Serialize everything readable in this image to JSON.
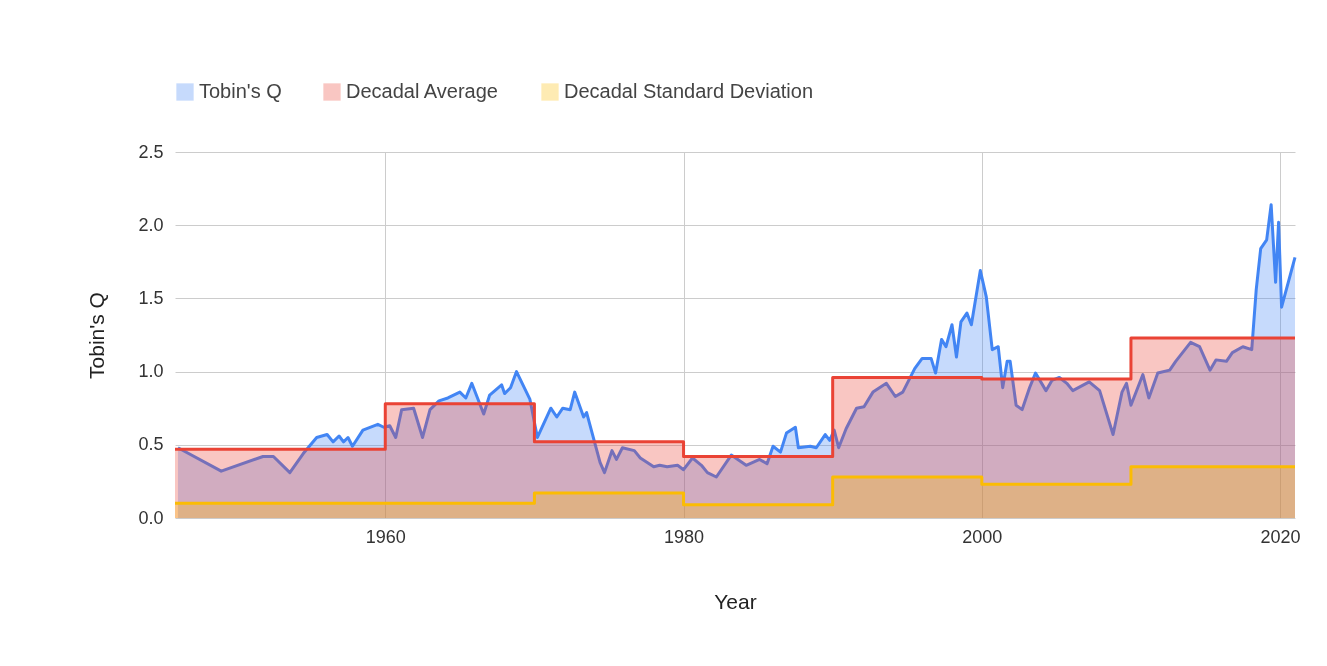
{
  "chart_data": {
    "type": "area",
    "xlabel": "Year",
    "ylabel": "Tobin's Q",
    "xlim": [
      1945.9,
      2021
    ],
    "xticks": [
      1960,
      1980,
      2000,
      2020
    ],
    "ylim": [
      0,
      2.5
    ],
    "yticks": [
      {
        "value": 0,
        "label": "0.0"
      },
      0.5,
      {
        "value": 1,
        "label": "1.0"
      },
      1.5,
      {
        "value": 2,
        "label": "2.0"
      },
      2.5
    ],
    "grid": true,
    "legend": "top",
    "series": [
      {
        "name": "Tobin's Q",
        "color": "#4285f4",
        "x": [
          1946.1,
          1949.0,
          1951.8,
          1952.5,
          1953.6,
          1954.5,
          1955.4,
          1956.1,
          1956.5,
          1956.9,
          1957.2,
          1957.5,
          1957.8,
          1958.5,
          1959.5,
          1959.9,
          1960.3,
          1960.7,
          1961.1,
          1961.9,
          1962.5,
          1963.0,
          1963.6,
          1964.2,
          1965.0,
          1965.4,
          1965.8,
          1966.6,
          1967.0,
          1967.8,
          1968.0,
          1968.4,
          1968.8,
          1969.7,
          1970.2,
          1971.1,
          1971.5,
          1971.9,
          1972.4,
          1972.7,
          1973.3,
          1973.5,
          1974.4,
          1974.7,
          1975.2,
          1975.5,
          1975.9,
          1976.7,
          1977.1,
          1978.0,
          1978.4,
          1978.9,
          1979.6,
          1980.0,
          1980.6,
          1981.2,
          1981.6,
          1982.2,
          1983.2,
          1984.2,
          1985.1,
          1985.6,
          1986.0,
          1986.5,
          1986.9,
          1987.5,
          1987.7,
          1988.5,
          1988.9,
          1989.5,
          1989.8,
          1990.1,
          1990.4,
          1990.9,
          1991.6,
          1992.1,
          1992.7,
          1993.6,
          1994.2,
          1994.7,
          1995.5,
          1996.0,
          1996.6,
          1996.9,
          1997.3,
          1997.6,
          1998.0,
          1998.3,
          1998.6,
          1999.0,
          1999.3,
          1999.9,
          2000.3,
          2000.7,
          2001.1,
          2001.4,
          2001.7,
          2001.9,
          2002.3,
          2002.7,
          2003.2,
          2003.6,
          2004.3,
          2004.7,
          2005.2,
          2005.7,
          2006.1,
          2007.2,
          2007.9,
          2008.8,
          2009.4,
          2009.7,
          2010.0,
          2010.8,
          2011.2,
          2011.8,
          2012.6,
          2013.0,
          2014.0,
          2014.6,
          2015.3,
          2015.7,
          2016.4,
          2016.8,
          2017.5,
          2018.1,
          2018.4,
          2018.7,
          2019.1,
          2019.4,
          2019.7,
          2019.9,
          2020.1,
          2021.0
        ],
        "values": [
          0.48,
          0.32,
          0.42,
          0.42,
          0.31,
          0.44,
          0.55,
          0.57,
          0.52,
          0.56,
          0.52,
          0.55,
          0.49,
          0.6,
          0.64,
          0.62,
          0.63,
          0.55,
          0.74,
          0.75,
          0.55,
          0.74,
          0.8,
          0.82,
          0.86,
          0.82,
          0.92,
          0.71,
          0.84,
          0.91,
          0.85,
          0.89,
          1.0,
          0.81,
          0.55,
          0.75,
          0.69,
          0.75,
          0.74,
          0.86,
          0.69,
          0.72,
          0.38,
          0.31,
          0.46,
          0.4,
          0.48,
          0.46,
          0.41,
          0.35,
          0.36,
          0.35,
          0.36,
          0.33,
          0.41,
          0.36,
          0.31,
          0.28,
          0.43,
          0.36,
          0.4,
          0.37,
          0.49,
          0.45,
          0.58,
          0.62,
          0.48,
          0.49,
          0.48,
          0.57,
          0.53,
          0.6,
          0.48,
          0.61,
          0.75,
          0.76,
          0.86,
          0.92,
          0.83,
          0.86,
          1.02,
          1.09,
          1.09,
          0.99,
          1.22,
          1.17,
          1.32,
          1.1,
          1.34,
          1.4,
          1.32,
          1.69,
          1.51,
          1.15,
          1.17,
          0.89,
          1.07,
          1.07,
          0.77,
          0.74,
          0.89,
          0.99,
          0.87,
          0.94,
          0.96,
          0.92,
          0.87,
          0.93,
          0.87,
          0.57,
          0.86,
          0.92,
          0.77,
          0.98,
          0.82,
          0.99,
          1.01,
          1.07,
          1.2,
          1.17,
          1.01,
          1.08,
          1.07,
          1.13,
          1.17,
          1.15,
          1.56,
          1.84,
          1.9,
          2.14,
          1.61,
          2.02,
          1.44,
          1.78
        ]
      },
      {
        "name": "Decadal Average",
        "color": "#ea4335",
        "x": [
          1945.9,
          1960,
          1960,
          1970,
          1970,
          1980,
          1980,
          1990,
          1990,
          2000,
          2000,
          2010,
          2010,
          2021
        ],
        "values": [
          0.47,
          0.47,
          0.78,
          0.78,
          0.52,
          0.52,
          0.42,
          0.42,
          0.96,
          0.96,
          0.95,
          0.95,
          1.23,
          1.23
        ]
      },
      {
        "name": "Decadal Standard Deviation",
        "color": "#fbbc04",
        "x": [
          1945.9,
          1970,
          1970,
          1980,
          1980,
          1990,
          1990,
          2000,
          2000,
          2010,
          2010,
          2021
        ],
        "values": [
          0.1,
          0.1,
          0.17,
          0.17,
          0.09,
          0.09,
          0.28,
          0.28,
          0.23,
          0.23,
          0.35,
          0.35
        ]
      }
    ]
  }
}
